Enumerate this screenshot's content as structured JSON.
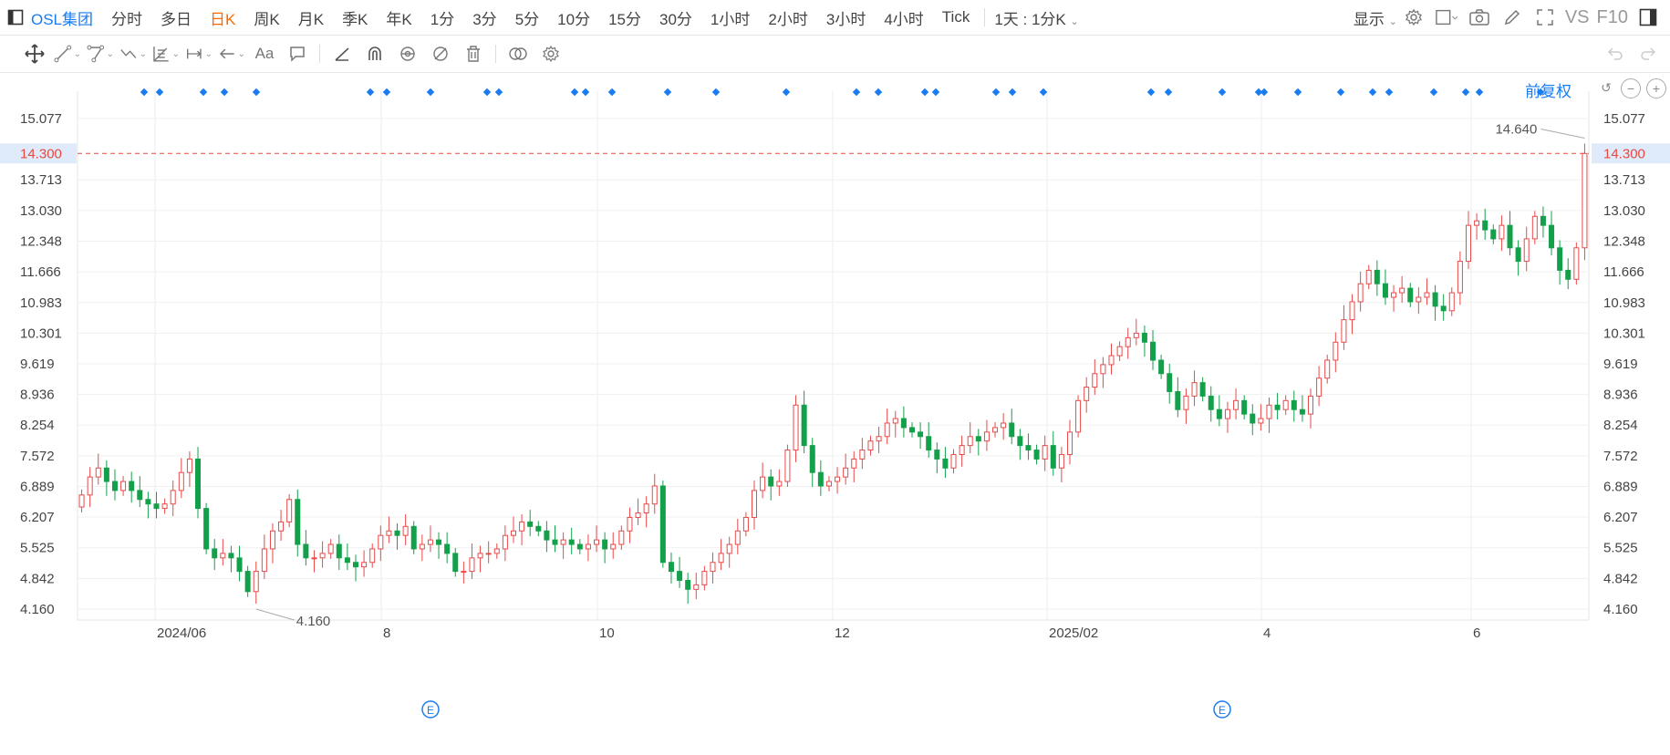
{
  "app": {
    "stock_name": "OSL集团",
    "periods": [
      "分时",
      "多日",
      "日K",
      "周K",
      "月K",
      "季K",
      "年K",
      "1分",
      "3分",
      "5分",
      "10分",
      "15分",
      "30分",
      "1小时",
      "2小时",
      "3小时",
      "4小时",
      "Tick"
    ],
    "active_period": "日K",
    "interval_selector": "1天 : 1分K",
    "display_label": "显示",
    "vs_label": "VS",
    "f10_label": "F10",
    "adjust_label": "前复权"
  },
  "icons": {
    "sidebar_toggle": "sidebar-toggle-icon",
    "settings": "gear-icon",
    "checkbox": "checkbox-icon",
    "camera": "camera-icon",
    "pencil": "pencil-icon",
    "fullscreen": "fullscreen-icon",
    "panel": "panel-toggle-icon",
    "toolbar": [
      "move-icon",
      "line-icon",
      "channel-icon",
      "zigzag-icon",
      "grid-ruler-icon",
      "range-icon",
      "arrow-icon",
      "text-icon",
      "comment-icon",
      "ruler-icon",
      "magnet-icon",
      "eye-lock-icon",
      "eye-off-icon",
      "trash-icon",
      "compare-icon",
      "gear-icon"
    ],
    "undo": "undo-icon",
    "redo": "redo-icon",
    "reset": "reset-icon",
    "zoom_out": "zoom-out-icon",
    "zoom_in": "zoom-in-icon"
  },
  "colors": {
    "accent": "#1a7cf0",
    "up": "#e84a4a",
    "down": "#13a04a",
    "active_period": "#ff6a00",
    "current_price": "#e8493f",
    "marker": "#1a7cf0"
  },
  "chart_data": {
    "type": "candlestick",
    "y_ticks": [
      "15.077",
      "13.713",
      "13.030",
      "12.348",
      "11.666",
      "10.983",
      "10.301",
      "9.619",
      "8.936",
      "8.254",
      "7.572",
      "6.889",
      "6.207",
      "5.525",
      "4.842",
      "4.160"
    ],
    "ylim": [
      4.16,
      15.077
    ],
    "x_ticks": [
      "2024/06",
      "8",
      "10",
      "12",
      "2025/02",
      "4",
      "6"
    ],
    "current_price": "14.300",
    "high_label": "14.640",
    "low_label": "4.160",
    "event_marker": "E",
    "series": [
      {
        "name": "OSL集团",
        "close": [
          6.7,
          7.1,
          7.3,
          7.0,
          6.8,
          7.0,
          6.8,
          6.6,
          6.5,
          6.4,
          6.5,
          6.8,
          7.2,
          7.5,
          6.4,
          5.5,
          5.3,
          5.4,
          5.3,
          5.0,
          4.55,
          5.0,
          5.5,
          5.9,
          6.1,
          6.6,
          5.6,
          5.3,
          5.3,
          5.4,
          5.6,
          5.3,
          5.2,
          5.1,
          5.2,
          5.5,
          5.8,
          5.9,
          5.8,
          6.0,
          5.5,
          5.6,
          5.7,
          5.6,
          5.4,
          5.0,
          5.0,
          5.3,
          5.4,
          5.4,
          5.5,
          5.8,
          5.9,
          6.1,
          6.0,
          5.9,
          5.7,
          5.6,
          5.7,
          5.6,
          5.5,
          5.6,
          5.7,
          5.5,
          5.6,
          5.9,
          6.2,
          6.3,
          6.5,
          6.9,
          5.2,
          5.0,
          4.8,
          4.6,
          4.7,
          5.0,
          5.2,
          5.4,
          5.6,
          5.9,
          6.2,
          6.8,
          7.1,
          6.9,
          7.0,
          7.7,
          8.7,
          7.8,
          7.2,
          6.9,
          7.0,
          7.1,
          7.3,
          7.5,
          7.7,
          7.9,
          8.0,
          8.3,
          8.4,
          8.2,
          8.1,
          8.0,
          7.7,
          7.5,
          7.3,
          7.6,
          7.8,
          8.0,
          7.9,
          8.1,
          8.2,
          8.3,
          8.0,
          7.8,
          7.7,
          7.5,
          7.8,
          7.3,
          7.6,
          8.1,
          8.8,
          9.1,
          9.4,
          9.6,
          9.8,
          10.0,
          10.2,
          10.3,
          10.1,
          9.7,
          9.4,
          9.0,
          8.6,
          8.9,
          9.2,
          8.9,
          8.6,
          8.4,
          8.6,
          8.8,
          8.5,
          8.3,
          8.4,
          8.7,
          8.6,
          8.8,
          8.6,
          8.5,
          8.9,
          9.3,
          9.7,
          10.1,
          10.6,
          11.0,
          11.4,
          11.7,
          11.4,
          11.1,
          11.2,
          11.3,
          11.0,
          11.1,
          11.2,
          10.9,
          10.8,
          11.2,
          11.9,
          12.7,
          12.8,
          12.6,
          12.4,
          12.7,
          12.2,
          11.9,
          12.4,
          12.9,
          12.7,
          12.2,
          11.7,
          11.5,
          12.2,
          14.3
        ]
      }
    ]
  }
}
